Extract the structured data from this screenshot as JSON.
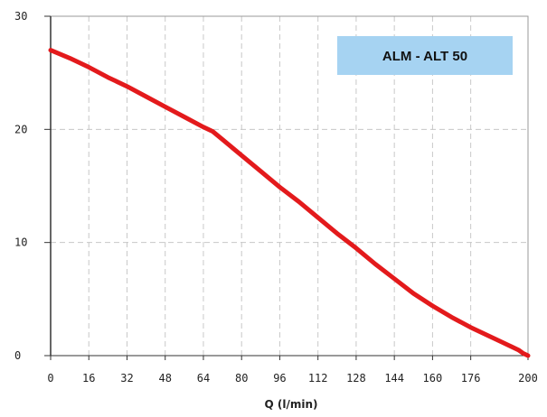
{
  "chart_data": {
    "type": "line",
    "title": "ALM - ALT 50",
    "xlabel": "Q (l/min)",
    "ylabel": "",
    "xlim": [
      0,
      200
    ],
    "ylim": [
      0,
      30
    ],
    "x_ticks": [
      0,
      16,
      32,
      48,
      64,
      80,
      96,
      112,
      128,
      144,
      160,
      176,
      200
    ],
    "y_ticks": [
      0,
      10,
      20,
      30
    ],
    "grid": true,
    "legend": "none",
    "series": [
      {
        "color": "#e31a1c",
        "x": [
          0,
          8,
          16,
          24,
          32,
          40,
          48,
          56,
          64,
          68,
          72,
          80,
          88,
          96,
          104,
          112,
          120,
          128,
          136,
          144,
          152,
          160,
          168,
          176,
          184,
          192,
          196,
          198,
          200
        ],
        "y": [
          27.0,
          26.3,
          25.5,
          24.6,
          23.8,
          22.9,
          22.0,
          21.1,
          20.2,
          19.8,
          19.1,
          17.7,
          16.3,
          14.9,
          13.6,
          12.2,
          10.8,
          9.5,
          8.1,
          6.8,
          5.5,
          4.4,
          3.4,
          2.5,
          1.7,
          0.9,
          0.5,
          0.2,
          0.0
        ]
      }
    ]
  },
  "colors": {
    "plot_background": "#ffffff",
    "grid": "#c8c8c8",
    "axis": "#333333",
    "badge_background": "#a6d3f2"
  }
}
